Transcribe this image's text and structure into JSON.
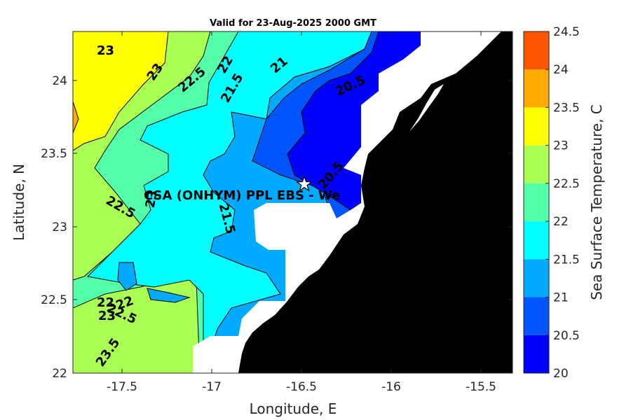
{
  "map": {
    "title": "Valid for 23-Aug-2025 2000 GMT",
    "xlabel": "Longitude, E",
    "ylabel": "Latitude, N",
    "x_ticks": [
      "-17.5",
      "-17",
      "-16.5",
      "-16",
      "-15.5"
    ],
    "y_ticks": [
      "24",
      "23.5",
      "23",
      "22.5",
      "22"
    ],
    "lon_range": [
      -17.78,
      -15.33
    ],
    "lat_range": [
      22.0,
      24.34
    ],
    "station": {
      "label": "CSA (ONHYM) PPL EBS  - We",
      "lon": -16.5,
      "lat": 23.29,
      "symbol": "white-star"
    },
    "land_color": "#000000",
    "nodata_color": "#ffffff"
  },
  "colorbar": {
    "label": "Sea Surface Temperature, C",
    "tick_labels": [
      "24.5",
      "24",
      "23.5",
      "23",
      "22.5",
      "22",
      "21.5",
      "21",
      "20.5",
      "20"
    ],
    "levels": [
      {
        "from": 20.0,
        "to": 20.5,
        "color": "#0000ff"
      },
      {
        "from": 20.5,
        "to": 21.0,
        "color": "#0055ff"
      },
      {
        "from": 21.0,
        "to": 21.5,
        "color": "#00aaff"
      },
      {
        "from": 21.5,
        "to": 22.0,
        "color": "#00ffff"
      },
      {
        "from": 22.0,
        "to": 22.5,
        "color": "#55ffaa"
      },
      {
        "from": 22.5,
        "to": 23.0,
        "color": "#aaff55"
      },
      {
        "from": 23.0,
        "to": 23.5,
        "color": "#ffff00"
      },
      {
        "from": 23.5,
        "to": 24.0,
        "color": "#ffaa00"
      },
      {
        "from": 24.0,
        "to": 24.5,
        "color": "#ff5500"
      }
    ]
  },
  "contour_labels": [
    "23",
    "23",
    "22.5",
    "22",
    "21.5",
    "21",
    "20.5",
    "20.5",
    "23",
    "22.5",
    "21.5",
    "22",
    "22",
    "22.5",
    "23",
    "23.5"
  ]
}
